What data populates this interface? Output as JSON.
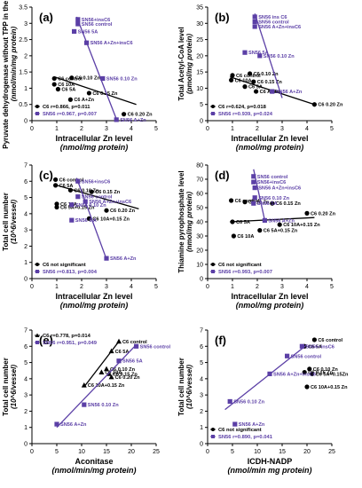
{
  "figure": {
    "colors": {
      "black_series": "#000000",
      "purple_series": "#5b3fa6",
      "axis": "#000000"
    }
  },
  "chart_data": [
    {
      "panel": "(a)",
      "type": "scatter",
      "ylabel": "Pyruvate dehydrogenase without TPP in the assay (nmol/min/mg protein)",
      "xlabel": "Intracellular Zn level (nmol/mg protein)",
      "xlim": [
        0,
        5
      ],
      "ylim": [
        0,
        3.5
      ],
      "xticks": [
        0,
        1,
        2,
        3,
        4,
        5
      ],
      "yticks": [
        0.0,
        0.5,
        1.0,
        1.5,
        2.0,
        2.5,
        3.0,
        3.5
      ],
      "legend_position": "bottom-left",
      "series": [
        {
          "name": "C6 r=0.866, p=0.011",
          "marker": "circle",
          "color": "#000000",
          "points": [
            {
              "x": 0.9,
              "y": 1.3,
              "label": "C6 control"
            },
            {
              "x": 1.6,
              "y": 1.32,
              "label": "C6 0.10 Zn"
            },
            {
              "x": 0.9,
              "y": 1.12,
              "label": "C6 10A"
            },
            {
              "x": 1.05,
              "y": 0.97,
              "label": "C6 5A"
            },
            {
              "x": 2.3,
              "y": 0.85,
              "label": "C6 0.15 Zn"
            },
            {
              "x": 1.55,
              "y": 0.65,
              "label": "C6 A+Zn"
            },
            {
              "x": 3.7,
              "y": 0.2,
              "label": "C6 0.20 Zn"
            }
          ],
          "fit": [
            [
              0.9,
              1.35
            ],
            [
              4.2,
              0.5
            ]
          ]
        },
        {
          "name": "SN56 r=0.967, p=0.007",
          "marker": "square",
          "color": "#5b3fa6",
          "points": [
            {
              "x": 1.85,
              "y": 3.12,
              "label": "SN56+insC6"
            },
            {
              "x": 1.85,
              "y": 2.98,
              "label": "SN56 control"
            },
            {
              "x": 1.7,
              "y": 2.75,
              "label": "SN56 5A"
            },
            {
              "x": 2.2,
              "y": 2.4,
              "label": "SN56 A+Zn+insC6"
            },
            {
              "x": 2.85,
              "y": 1.3,
              "label": "SN56 0.10 Zn"
            },
            {
              "x": 3.4,
              "y": 0.03,
              "label": "SN56 A+Zn"
            }
          ],
          "fit": [
            [
              1.8,
              3.2
            ],
            [
              3.4,
              0.05
            ]
          ]
        }
      ]
    },
    {
      "panel": "(b)",
      "type": "scatter",
      "ylabel": "Total Acetyl-CoA level (pmol/mg protein)",
      "xlabel": "Intracellular Zn level (nmol/mg protein)",
      "xlim": [
        0,
        5
      ],
      "ylim": [
        0,
        35
      ],
      "xticks": [
        0,
        1,
        2,
        3,
        4,
        5
      ],
      "yticks": [
        0,
        5,
        10,
        15,
        20,
        25,
        30,
        35
      ],
      "legend_position": "bottom-left",
      "series": [
        {
          "name": "C6 r=0.624, p=0.018",
          "marker": "circle",
          "color": "#000000",
          "points": [
            {
              "x": 1.0,
              "y": 14.0,
              "label": "C6 control"
            },
            {
              "x": 1.7,
              "y": 14.5,
              "label": "C6 0.10 Zn"
            },
            {
              "x": 0.95,
              "y": 12.5,
              "label": "C6 10A"
            },
            {
              "x": 1.85,
              "y": 12.0,
              "label": "C6 0.15 Zn"
            },
            {
              "x": 1.5,
              "y": 10.5,
              "label": "C6 5A"
            },
            {
              "x": 1.95,
              "y": 9.0,
              "label": "C6 A+Zn"
            },
            {
              "x": 4.3,
              "y": 5.0,
              "label": "C6 0.20 Zn"
            }
          ],
          "fit": [
            [
              0.9,
              13.5
            ],
            [
              4.3,
              5.0
            ]
          ]
        },
        {
          "name": "SN56 r=0.939, p=0.024",
          "marker": "square",
          "color": "#5b3fa6",
          "points": [
            {
              "x": 1.9,
              "y": 32.0,
              "label": "SN56 ins C6"
            },
            {
              "x": 1.9,
              "y": 30.5,
              "label": "SN56 control"
            },
            {
              "x": 1.9,
              "y": 29.0,
              "label": "SN56 A+Zn+insC6"
            },
            {
              "x": 1.5,
              "y": 21.0,
              "label": "SN56 5A"
            },
            {
              "x": 2.1,
              "y": 20.0,
              "label": "SN56 0.10 Zn"
            },
            {
              "x": 2.6,
              "y": 9.0,
              "label": "SN56 A+Zn"
            }
          ],
          "fit": [
            [
              1.9,
              33.0
            ],
            [
              3.0,
              7.0
            ]
          ]
        }
      ]
    },
    {
      "panel": "(c)",
      "type": "scatter",
      "ylabel": "Total cell number (10^6/vessel)",
      "xlabel": "Intracellular Zn level (nmol/mg protein)",
      "xlim": [
        0,
        5
      ],
      "ylim": [
        0,
        7
      ],
      "xticks": [
        0,
        1,
        2,
        3,
        4,
        5
      ],
      "yticks": [
        0,
        1,
        2,
        3,
        4,
        5,
        6,
        7
      ],
      "legend_position": "bottom-left",
      "series": [
        {
          "name": "C6 not significant",
          "marker": "circle",
          "color": "#000000",
          "points": [
            {
              "x": 0.95,
              "y": 6.1,
              "label": "C6 control"
            },
            {
              "x": 0.95,
              "y": 5.75,
              "label": "C6 5A"
            },
            {
              "x": 1.55,
              "y": 5.45,
              "label": "C6 0.10 Zn"
            },
            {
              "x": 2.4,
              "y": 5.35,
              "label": "C6 0.15 Zn"
            },
            {
              "x": 1.0,
              "y": 4.6,
              "label": "C6 10A"
            },
            {
              "x": 1.0,
              "y": 4.4,
              "label": "C6 5A+0.15 Zn"
            },
            {
              "x": 3.0,
              "y": 4.2,
              "label": "C6 0.20 Zn"
            },
            {
              "x": 2.3,
              "y": 3.7,
              "label": "C6 10A+0.15 Zn"
            }
          ],
          "fit": [
            [
              0.9,
              5.8
            ],
            [
              4.3,
              4.3
            ]
          ]
        },
        {
          "name": "SN56 r=0.813, p=0.004",
          "marker": "square",
          "color": "#5b3fa6",
          "points": [
            {
              "x": 1.85,
              "y": 6.0,
              "label": "SN56+insC6"
            },
            {
              "x": 1.85,
              "y": 5.05,
              "label": "SN56 control"
            },
            {
              "x": 2.15,
              "y": 4.75,
              "label": "SN56 A+Zn+insC6"
            },
            {
              "x": 1.6,
              "y": 4.55,
              "label": "SN56 0.10 Zn"
            },
            {
              "x": 1.6,
              "y": 3.6,
              "label": "SN56 5 A"
            },
            {
              "x": 3.0,
              "y": 1.25,
              "label": "SN56 A+Zn"
            }
          ],
          "fit": [
            [
              1.8,
              6.2
            ],
            [
              3.0,
              1.2
            ]
          ]
        }
      ]
    },
    {
      "panel": "(d)",
      "type": "scatter",
      "ylabel": "Thiamine pyrophosphate level (nmol/mg protein)",
      "xlabel": "Intracellular Zn level (nmol/mg protein)",
      "xlim": [
        0,
        5
      ],
      "ylim": [
        0,
        80
      ],
      "xticks": [
        0,
        1,
        2,
        3,
        4,
        5
      ],
      "yticks": [
        0,
        10,
        20,
        30,
        40,
        50,
        60,
        70,
        80
      ],
      "legend_position": "bottom-left",
      "series": [
        {
          "name": "C6 not significant",
          "marker": "circle",
          "color": "#000000",
          "points": [
            {
              "x": 0.95,
              "y": 55,
              "label": "C6 control"
            },
            {
              "x": 1.5,
              "y": 54,
              "label": "C6 10 Zn"
            },
            {
              "x": 2.6,
              "y": 53,
              "label": "C6 0.15 Zn"
            },
            {
              "x": 4.0,
              "y": 46,
              "label": "C6 0.20 Zn"
            },
            {
              "x": 1.0,
              "y": 40,
              "label": "C6 5A"
            },
            {
              "x": 2.9,
              "y": 38,
              "label": "C6 10A+0.15 Zn"
            },
            {
              "x": 2.1,
              "y": 34,
              "label": "C6 5A+0.15 Zn"
            },
            {
              "x": 1.05,
              "y": 30,
              "label": "C6 10A"
            }
          ],
          "fit": [
            [
              0.9,
              40
            ],
            [
              4.3,
              43
            ]
          ]
        },
        {
          "name": "SN56 r=0.993, p=0.007",
          "marker": "square",
          "color": "#5b3fa6",
          "points": [
            {
              "x": 1.85,
              "y": 72,
              "label": "SN56 control"
            },
            {
              "x": 1.85,
              "y": 68,
              "label": "SN56+insC6"
            },
            {
              "x": 1.9,
              "y": 64,
              "label": "SN56 A+Zn+insC6"
            },
            {
              "x": 1.9,
              "y": 57,
              "label": "SN56 0.10 Zn"
            },
            {
              "x": 1.85,
              "y": 53,
              "label": "SN56 5A"
            },
            {
              "x": 2.3,
              "y": 41,
              "label": "SN56 A+Zn"
            }
          ],
          "fit": [
            [
              1.85,
              77
            ],
            [
              2.3,
              41
            ]
          ]
        }
      ]
    },
    {
      "panel": "(e)",
      "type": "scatter",
      "ylabel": "Total cell number (10^6/vessel)",
      "xlabel": "Aconitase (nmol/min/mg protein)",
      "xlim": [
        0,
        25
      ],
      "ylim": [
        0,
        7
      ],
      "xticks": [
        0,
        5,
        10,
        15,
        20,
        25
      ],
      "yticks": [
        0,
        1,
        2,
        3,
        4,
        5,
        6,
        7
      ],
      "legend_position": "top-left",
      "series": [
        {
          "name": "C6 r=0.778, p=0.014",
          "marker": "triangle",
          "color": "#000000",
          "points": [
            {
              "x": 17.5,
              "y": 6.3,
              "label": "C6 control"
            },
            {
              "x": 16.0,
              "y": 5.7,
              "label": "C6 5A"
            },
            {
              "x": 15.0,
              "y": 4.6,
              "label": "C6 0.10 Zn"
            },
            {
              "x": 14.0,
              "y": 4.4,
              "label": "C6 10A"
            },
            {
              "x": 15.5,
              "y": 4.3,
              "label": "C6 0.15 Zn"
            },
            {
              "x": 16.0,
              "y": 4.1,
              "label": "C6 0.20 Zn"
            },
            {
              "x": 10.5,
              "y": 3.6,
              "label": "C6 10A+0.15 Zn"
            }
          ],
          "fit": [
            [
              10.5,
              3.5
            ],
            [
              17.5,
              6.3
            ]
          ]
        },
        {
          "name": "SN56 r=0.951, p=0.049",
          "marker": "square",
          "color": "#5b3fa6",
          "points": [
            {
              "x": 21.0,
              "y": 6.0,
              "label": "SN56 control"
            },
            {
              "x": 17.5,
              "y": 5.1,
              "label": "SN56 5A"
            },
            {
              "x": 10.5,
              "y": 2.4,
              "label": "SN56 0.10 Zn"
            },
            {
              "x": 5.0,
              "y": 1.2,
              "label": "SN56 A+Zn"
            }
          ],
          "fit": [
            [
              5.0,
              1.0
            ],
            [
              21.0,
              6.1
            ]
          ]
        }
      ]
    },
    {
      "panel": "(f)",
      "type": "scatter",
      "ylabel": "Total cell number (10^6/vessel)",
      "xlabel": "ICDH-NADP (nmol/min mg protein)",
      "xlim": [
        0,
        25
      ],
      "ylim": [
        0,
        7
      ],
      "xticks": [
        0,
        5,
        10,
        15,
        20,
        25
      ],
      "yticks": [
        0,
        1,
        2,
        3,
        4,
        5,
        6,
        7
      ],
      "legend_position": "bottom-left",
      "series": [
        {
          "name": "C6 not significant",
          "marker": "circle",
          "color": "#000000",
          "points": [
            {
              "x": 21.5,
              "y": 6.4,
              "label": "C6 control"
            },
            {
              "x": 19.5,
              "y": 6.0,
              "label": "C6 5A"
            },
            {
              "x": 20.5,
              "y": 4.6,
              "label": "C6 0.10 Zn"
            },
            {
              "x": 19.5,
              "y": 4.4,
              "label": "C6 0.15 Zn"
            },
            {
              "x": 21.0,
              "y": 4.3,
              "label": "C6 5A+0.15Zn"
            },
            {
              "x": 20.0,
              "y": 3.5,
              "label": "C6 10A+0.15 Zn"
            }
          ]
        },
        {
          "name": "SN56 r=0.890, p=0.041",
          "marker": "square",
          "color": "#5b3fa6",
          "points": [
            {
              "x": 19.0,
              "y": 6.0,
              "label": "SN56+insC6"
            },
            {
              "x": 16.0,
              "y": 5.4,
              "label": "SN56 control"
            },
            {
              "x": 12.5,
              "y": 4.3,
              "label": "SN56 A+Zn+insC6"
            },
            {
              "x": 4.5,
              "y": 2.6,
              "label": "SN56 0.10 Zn"
            },
            {
              "x": 5.5,
              "y": 1.2,
              "label": "SN56 A+Zn"
            }
          ],
          "fit": [
            [
              3.5,
              2.1
            ],
            [
              20.0,
              6.1
            ]
          ]
        }
      ]
    }
  ]
}
